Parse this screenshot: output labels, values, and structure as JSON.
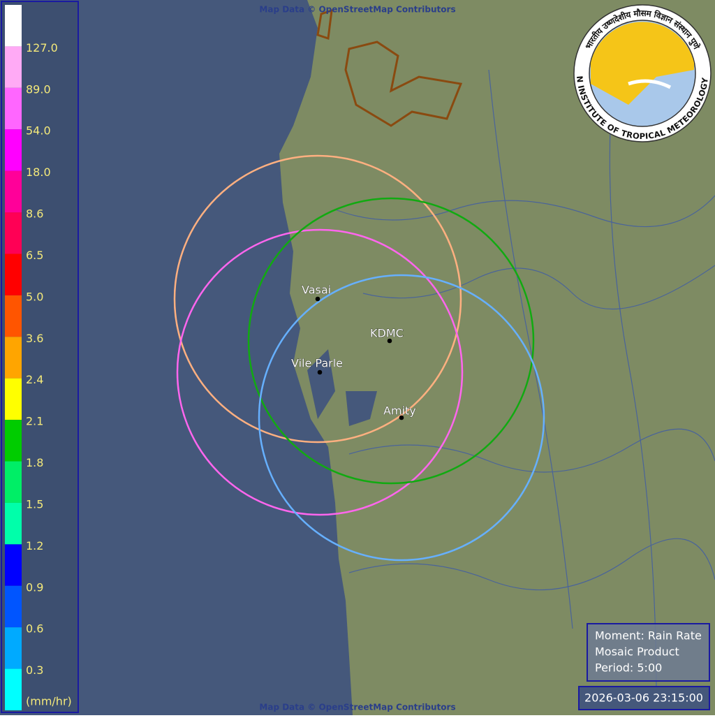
{
  "attribution_top": "Map Data © OpenStreetMap Contributors",
  "attribution_bottom": "Map Data © OpenStreetMap Contributors",
  "legend": {
    "unit": "(mm/hr)",
    "labels": [
      "127.0",
      "89.0",
      "54.0",
      "18.0",
      "8.6",
      "6.5",
      "5.0",
      "3.6",
      "2.4",
      "2.1",
      "1.8",
      "1.5",
      "1.2",
      "0.9",
      "0.6",
      "0.3"
    ],
    "colors": [
      "#ffffff",
      "#ffaaf5",
      "#ff66ff",
      "#ff00ff",
      "#ff0099",
      "#ff0055",
      "#ff0000",
      "#ff5500",
      "#ffa500",
      "#ffff00",
      "#00cc00",
      "#00ee66",
      "#00ffaa",
      "#0000ff",
      "#0055ff",
      "#00aaff",
      "#00ffff"
    ]
  },
  "stations": [
    {
      "name": "Vasai",
      "color": "#ffb080"
    },
    {
      "name": "Vile Parle",
      "color": "#ff66ee"
    },
    {
      "name": "KDMC",
      "color": "#11aa11"
    },
    {
      "name": "Amity",
      "color": "#66b0ff"
    }
  ],
  "info": {
    "moment": "Moment: Rain Rate",
    "product": "Mosaic Product",
    "period": "Period: 5:00"
  },
  "timestamp": "2026-03-06 23:15:00",
  "logo": {
    "english": "INDIAN INSTITUTE OF TROPICAL METEOROLOGY PUNE",
    "hindi": "भारतीय उष्णदेशीय मौसम विज्ञान संस्थान पुणे"
  }
}
